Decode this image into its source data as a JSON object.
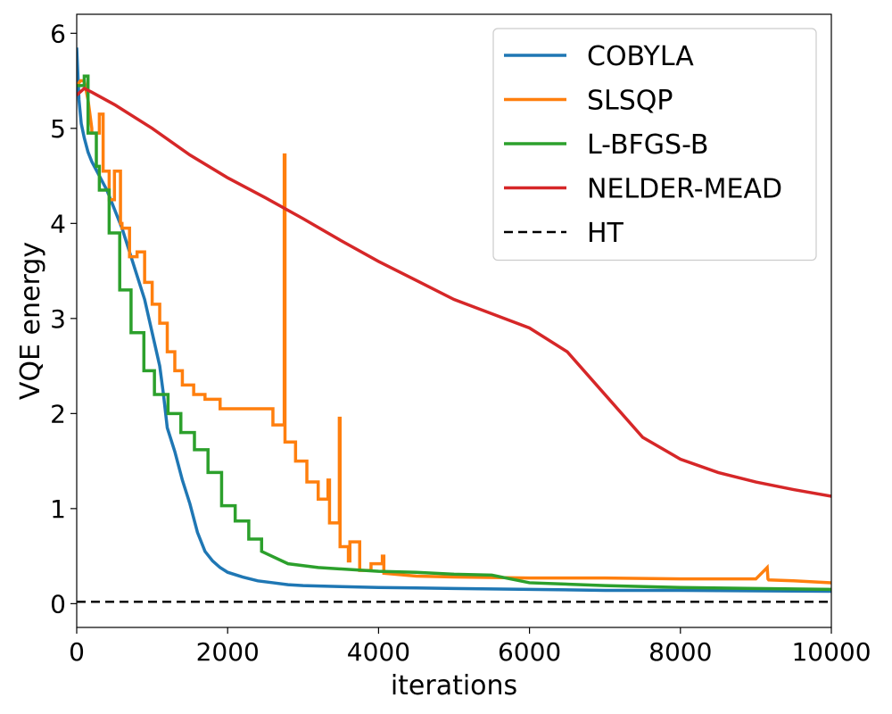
{
  "chart_data": {
    "type": "line",
    "title": "",
    "xlabel": "iterations",
    "ylabel": "VQE energy",
    "xlim": [
      0,
      10000
    ],
    "ylim": [
      -0.25,
      6.2
    ],
    "xticks": [
      0,
      2000,
      4000,
      6000,
      8000,
      10000
    ],
    "yticks": [
      0,
      1,
      2,
      3,
      4,
      5,
      6
    ],
    "grid": false,
    "legend_position": "top-right",
    "series": [
      {
        "name": "COBYLA",
        "color": "#1f77b4",
        "style": "solid",
        "x": [
          0,
          30,
          60,
          100,
          150,
          200,
          300,
          400,
          500,
          600,
          700,
          800,
          900,
          1000,
          1100,
          1150,
          1200,
          1300,
          1400,
          1500,
          1600,
          1700,
          1800,
          1900,
          2000,
          2200,
          2400,
          2600,
          2800,
          3000,
          3500,
          4000,
          4500,
          5000,
          6000,
          7000,
          8000,
          9000,
          10000
        ],
        "y": [
          5.85,
          5.3,
          5.05,
          4.9,
          4.75,
          4.65,
          4.5,
          4.35,
          4.15,
          3.95,
          3.7,
          3.45,
          3.2,
          2.85,
          2.5,
          2.2,
          1.85,
          1.6,
          1.3,
          1.05,
          0.75,
          0.55,
          0.45,
          0.38,
          0.33,
          0.28,
          0.24,
          0.22,
          0.2,
          0.19,
          0.18,
          0.17,
          0.165,
          0.16,
          0.15,
          0.14,
          0.14,
          0.135,
          0.13
        ]
      },
      {
        "name": "SLSQP",
        "color": "#ff7f0e",
        "style": "solid",
        "x": [
          0,
          50,
          100,
          150,
          200,
          200,
          300,
          300,
          350,
          350,
          430,
          430,
          500,
          500,
          580,
          580,
          600,
          600,
          700,
          700,
          800,
          800,
          900,
          900,
          1000,
          1000,
          1100,
          1100,
          1200,
          1200,
          1300,
          1300,
          1400,
          1400,
          1550,
          1550,
          1700,
          1700,
          1900,
          1900,
          2600,
          2600,
          2750,
          2750,
          2760,
          2760,
          2900,
          2900,
          3050,
          3050,
          3200,
          3200,
          3330,
          3330,
          3350,
          3350,
          3480,
          3480,
          3490,
          3490,
          3600,
          3600,
          3620,
          3620,
          3750,
          3750,
          3900,
          3900,
          4050,
          4050,
          4070,
          4070,
          4500,
          5000,
          6000,
          7000,
          8000,
          9000,
          9150,
          9160,
          9170,
          9500,
          10000
        ],
        "y": [
          5.45,
          5.5,
          5.5,
          5.3,
          5.0,
          4.95,
          4.95,
          5.15,
          5.15,
          4.55,
          4.55,
          4.25,
          4.25,
          4.55,
          4.55,
          4.0,
          4.0,
          3.95,
          3.95,
          3.65,
          3.65,
          3.7,
          3.7,
          3.38,
          3.38,
          3.15,
          3.15,
          2.95,
          2.95,
          2.65,
          2.65,
          2.45,
          2.45,
          2.3,
          2.3,
          2.2,
          2.2,
          2.15,
          2.15,
          2.05,
          2.05,
          1.88,
          1.88,
          4.72,
          4.72,
          1.7,
          1.7,
          1.5,
          1.5,
          1.28,
          1.28,
          1.1,
          1.1,
          1.3,
          1.3,
          0.85,
          0.85,
          1.95,
          1.95,
          0.6,
          0.6,
          0.45,
          0.45,
          0.65,
          0.65,
          0.35,
          0.35,
          0.42,
          0.42,
          0.5,
          0.5,
          0.32,
          0.29,
          0.28,
          0.27,
          0.27,
          0.26,
          0.26,
          0.38,
          0.26,
          0.25,
          0.24,
          0.22
        ]
      },
      {
        "name": "L-BFGS-B",
        "color": "#2ca02c",
        "style": "solid",
        "x": [
          0,
          100,
          100,
          150,
          150,
          260,
          260,
          300,
          300,
          430,
          430,
          570,
          570,
          720,
          720,
          890,
          890,
          1030,
          1030,
          1210,
          1210,
          1380,
          1380,
          1560,
          1560,
          1740,
          1740,
          1920,
          1920,
          2100,
          2100,
          2280,
          2280,
          2450,
          2450,
          2800,
          3200,
          4000,
          4500,
          5000,
          5500,
          6000,
          7000,
          8000,
          9000,
          10000
        ],
        "y": [
          5.45,
          5.45,
          5.55,
          5.55,
          4.95,
          4.95,
          4.6,
          4.6,
          4.35,
          4.35,
          3.9,
          3.9,
          3.3,
          3.3,
          2.85,
          2.85,
          2.45,
          2.45,
          2.2,
          2.2,
          2.0,
          2.0,
          1.8,
          1.8,
          1.62,
          1.62,
          1.38,
          1.38,
          1.03,
          1.03,
          0.87,
          0.87,
          0.68,
          0.68,
          0.55,
          0.42,
          0.38,
          0.34,
          0.33,
          0.31,
          0.3,
          0.22,
          0.19,
          0.17,
          0.16,
          0.15
        ]
      },
      {
        "name": "NELDER-MEAD",
        "color": "#d62728",
        "style": "solid",
        "x": [
          0,
          100,
          200,
          500,
          1000,
          1500,
          2000,
          2500,
          3000,
          3500,
          4000,
          4500,
          5000,
          5500,
          6000,
          6500,
          7000,
          7500,
          8000,
          8500,
          9000,
          9500,
          10000
        ],
        "y": [
          5.35,
          5.42,
          5.38,
          5.25,
          5.0,
          4.72,
          4.48,
          4.27,
          4.05,
          3.82,
          3.6,
          3.4,
          3.2,
          3.05,
          2.9,
          2.65,
          2.2,
          1.75,
          1.52,
          1.38,
          1.28,
          1.2,
          1.13
        ]
      },
      {
        "name": "HT",
        "color": "#000000",
        "style": "dashed",
        "x": [
          0,
          10000
        ],
        "y": [
          0.02,
          0.02
        ]
      }
    ]
  }
}
